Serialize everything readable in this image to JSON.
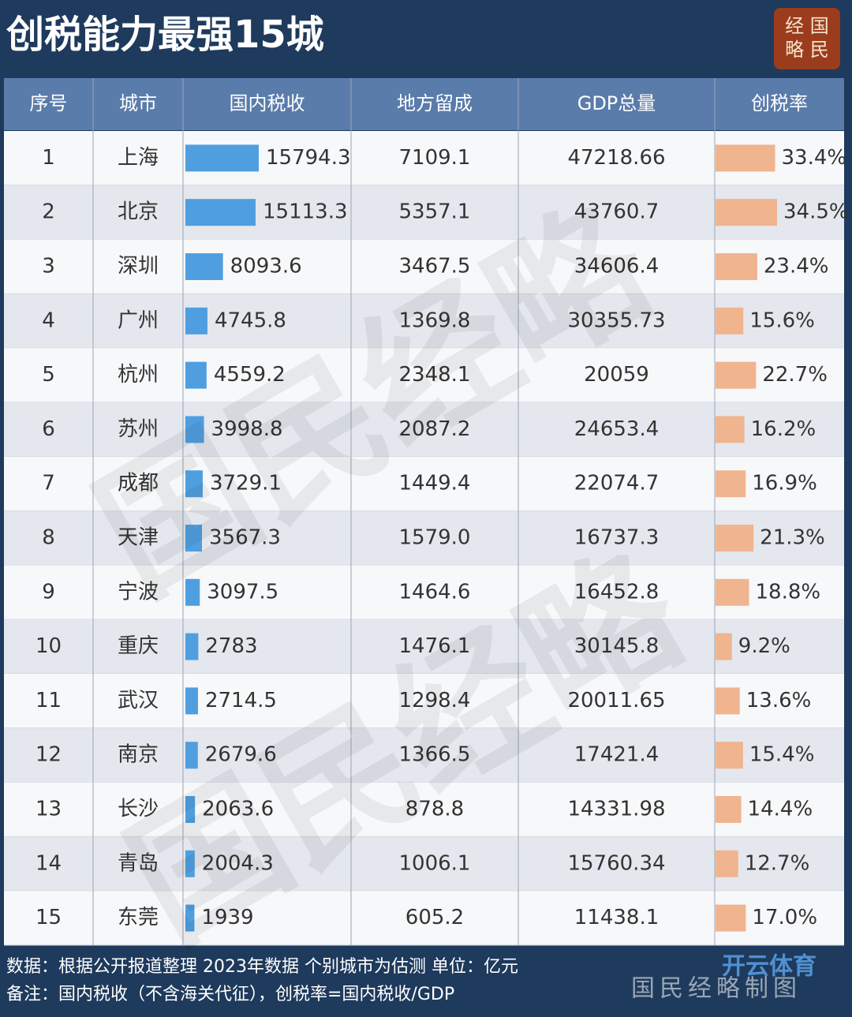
{
  "header": {
    "title": "创税能力最强15城",
    "logo": [
      "经 国",
      "略 民"
    ]
  },
  "table": {
    "columns": [
      "序号",
      "城市",
      "国内税收",
      "地方留成",
      "GDP总量",
      "创税率"
    ],
    "rows": [
      [
        1,
        "上海",
        15794.3,
        "7109.1",
        "47218.66",
        {
          "value": 33.4,
          "label": "33.4%"
        }
      ],
      [
        2,
        "北京",
        15113.3,
        "5357.1",
        "43760.7",
        {
          "value": 34.5,
          "label": "34.5%"
        }
      ],
      [
        3,
        "深圳",
        8093.6,
        "3467.5",
        "34606.4",
        {
          "value": 23.4,
          "label": "23.4%"
        }
      ],
      [
        4,
        "广州",
        4745.8,
        "1369.8",
        "30355.73",
        {
          "value": 15.6,
          "label": "15.6%"
        }
      ],
      [
        5,
        "杭州",
        4559.2,
        "2348.1",
        "20059",
        {
          "value": 22.7,
          "label": "22.7%"
        }
      ],
      [
        6,
        "苏州",
        3998.8,
        "2087.2",
        "24653.4",
        {
          "value": 16.2,
          "label": "16.2%"
        }
      ],
      [
        7,
        "成都",
        3729.1,
        "1449.4",
        "22074.7",
        {
          "value": 16.9,
          "label": "16.9%"
        }
      ],
      [
        8,
        "天津",
        3567.3,
        "1579.0",
        "16737.3",
        {
          "value": 21.3,
          "label": "21.3%"
        }
      ],
      [
        9,
        "宁波",
        3097.5,
        "1464.6",
        "16452.8",
        {
          "value": 18.8,
          "label": "18.8%"
        }
      ],
      [
        10,
        "重庆",
        2783,
        "1476.1",
        "30145.8",
        {
          "value": 9.2,
          "label": "9.2%"
        }
      ],
      [
        11,
        "武汉",
        2714.5,
        "1298.4",
        "20011.65",
        {
          "value": 13.6,
          "label": "13.6%"
        }
      ],
      [
        12,
        "南京",
        2679.6,
        "1366.5",
        "17421.4",
        {
          "value": 15.4,
          "label": "15.4%"
        }
      ],
      [
        13,
        "长沙",
        2063.6,
        "878.8",
        "14331.98",
        {
          "value": 14.4,
          "label": "14.4%"
        }
      ],
      [
        14,
        "青岛",
        2004.3,
        "1006.1",
        "15760.34",
        {
          "value": 12.7,
          "label": "12.7%"
        }
      ],
      [
        15,
        "东莞",
        1939,
        "605.2",
        "11438.1",
        {
          "value": 17.0,
          "label": "17.0%"
        }
      ]
    ]
  },
  "watermark": "国民经略",
  "footer": {
    "lines": [
      "数据：根据公开报道整理 2023年数据 个别城市为估测 单位：亿元",
      "备注：国内税收（不含海关代征），创税率=国内税收/GDP"
    ],
    "credit": "国民经略制图",
    "stamp": "开云体育"
  }
}
